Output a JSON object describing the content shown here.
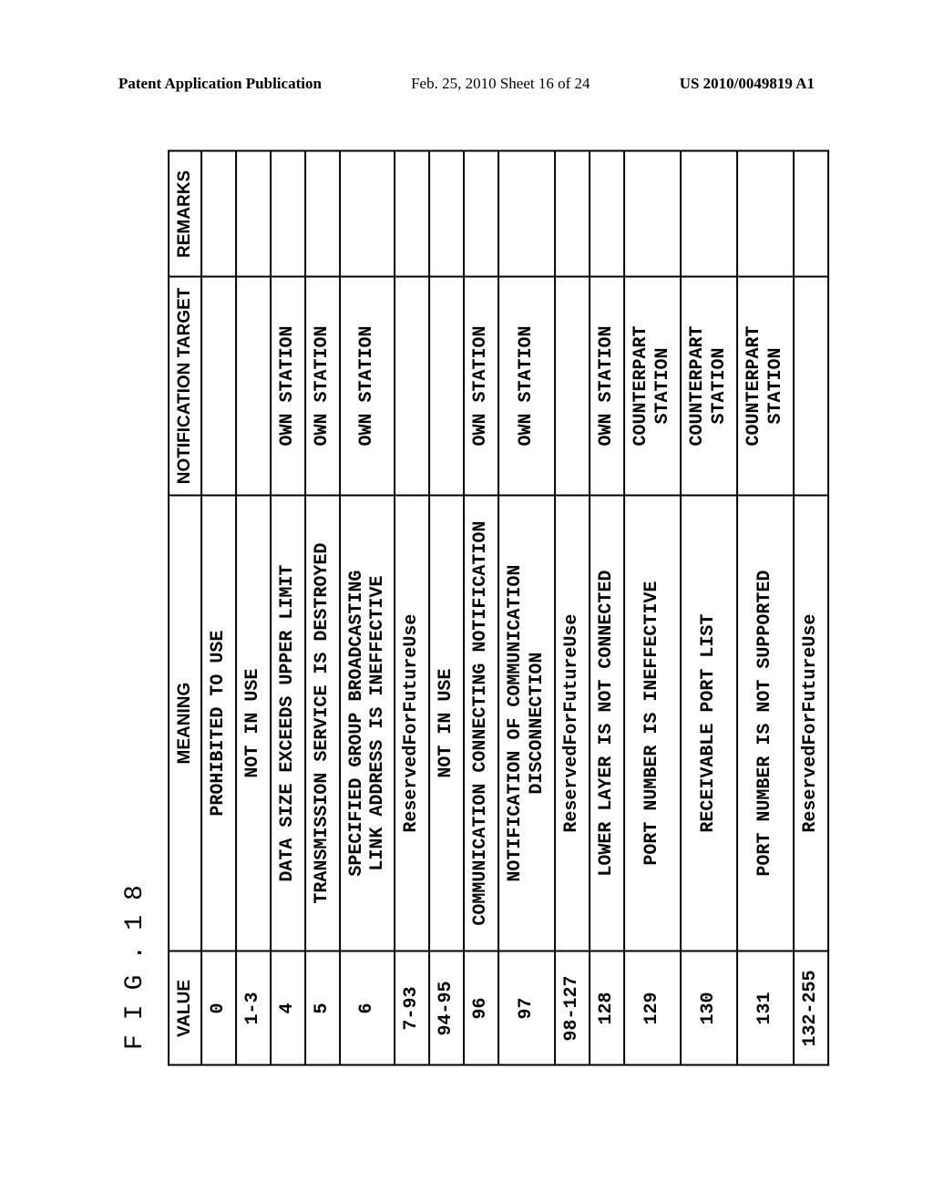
{
  "header": {
    "left": "Patent Application Publication",
    "center": "Feb. 25, 2010  Sheet 16 of 24",
    "right": "US 2010/0049819 A1"
  },
  "figure_label": "FIG.18",
  "table": {
    "columns": [
      "VALUE",
      "MEANING",
      "NOTIFICATION TARGET",
      "REMARKS"
    ],
    "rows": [
      {
        "value": "0",
        "meaning": "PROHIBITED TO USE",
        "target": "",
        "remarks": ""
      },
      {
        "value": "1-3",
        "meaning": "NOT IN USE",
        "target": "",
        "remarks": ""
      },
      {
        "value": "4",
        "meaning": "DATA SIZE EXCEEDS UPPER LIMIT",
        "target": "OWN STATION",
        "remarks": ""
      },
      {
        "value": "5",
        "meaning": "TRANSMISSION SERVICE IS DESTROYED",
        "target": "OWN STATION",
        "remarks": ""
      },
      {
        "value": "6",
        "meaning": "SPECIFIED GROUP BROADCASTING\nLINK ADDRESS IS INEFFECTIVE",
        "target": "OWN STATION",
        "remarks": ""
      },
      {
        "value": "7-93",
        "meaning": "ReservedForFutureUse",
        "target": "",
        "remarks": ""
      },
      {
        "value": "94-95",
        "meaning": "NOT IN USE",
        "target": "",
        "remarks": ""
      },
      {
        "value": "96",
        "meaning": "COMMUNICATION CONNECTING NOTIFICATION",
        "target": "OWN STATION",
        "remarks": ""
      },
      {
        "value": "97",
        "meaning": "NOTIFICATION OF COMMUNICATION DISCONNECTION",
        "target": "OWN STATION",
        "remarks": ""
      },
      {
        "value": "98-127",
        "meaning": "ReservedForFutureUse",
        "target": "",
        "remarks": ""
      },
      {
        "value": "128",
        "meaning": "LOWER LAYER IS NOT CONNECTED",
        "target": "OWN STATION",
        "remarks": ""
      },
      {
        "value": "129",
        "meaning": "PORT NUMBER IS INEFFECTIVE",
        "target": "COUNTERPART STATION",
        "remarks": ""
      },
      {
        "value": "130",
        "meaning": "RECEIVABLE PORT LIST",
        "target": "COUNTERPART STATION",
        "remarks": ""
      },
      {
        "value": "131",
        "meaning": "PORT NUMBER IS NOT SUPPORTED",
        "target": "COUNTERPART STATION",
        "remarks": ""
      },
      {
        "value": "132-255",
        "meaning": "ReservedForFutureUse",
        "target": "",
        "remarks": ""
      }
    ]
  }
}
